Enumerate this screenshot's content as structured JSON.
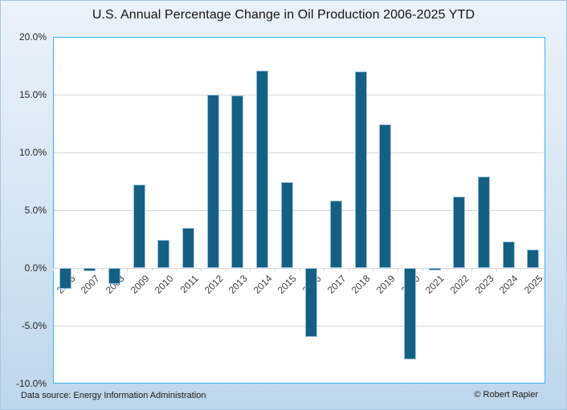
{
  "footer": {
    "source": "Data source: Energy Information Administration",
    "copyright": "© Robert Rapier"
  },
  "colors": {
    "bar": "#156082",
    "bar_border": "#9dc3e6",
    "plot_border": "#3bb6e9",
    "grid": "#d9d9d9",
    "bg_top": "#eaf2fa",
    "bg_bottom": "#bdd6ec"
  },
  "chart_data": {
    "type": "bar",
    "title": "U.S. Annual Percentage Change in Oil Production 2006-2025 YTD",
    "xlabel": "",
    "ylabel": "",
    "ylim": [
      -10,
      20
    ],
    "grid": true,
    "legend": false,
    "categories": [
      "2006",
      "2007",
      "2008",
      "2009",
      "2010",
      "2011",
      "2012",
      "2013",
      "2014",
      "2015",
      "2016",
      "2017",
      "2018",
      "2019",
      "2020",
      "2021",
      "2022",
      "2023",
      "2024",
      "2025"
    ],
    "values": [
      -1.8,
      -0.3,
      -1.4,
      7.2,
      2.4,
      3.5,
      15.0,
      14.9,
      17.1,
      7.4,
      -6.0,
      5.8,
      17.0,
      12.4,
      -7.9,
      -0.2,
      6.2,
      7.9,
      2.3,
      1.6
    ],
    "y_ticks": [
      {
        "value": 20,
        "label": "20.0%"
      },
      {
        "value": 15,
        "label": "15.0%"
      },
      {
        "value": 10,
        "label": "10.0%"
      },
      {
        "value": 5,
        "label": "5.0%"
      },
      {
        "value": 0,
        "label": "0.0%"
      },
      {
        "value": -5,
        "label": "-5.0%"
      },
      {
        "value": -10,
        "label": "-10.0%"
      }
    ]
  }
}
